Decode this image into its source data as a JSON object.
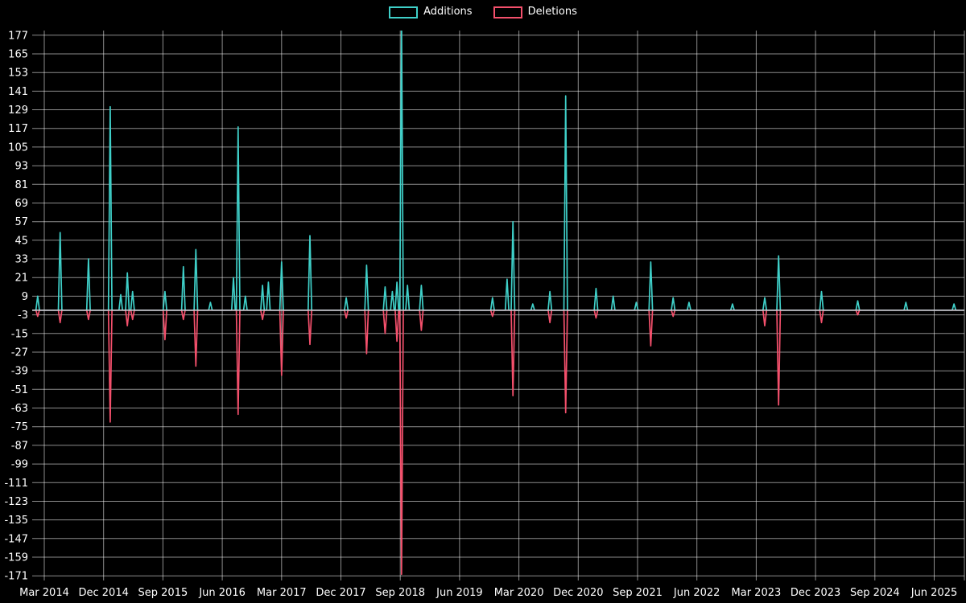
{
  "legend": {
    "items": [
      {
        "label": "Additions",
        "color": "#3fd0c9"
      },
      {
        "label": "Deletions",
        "color": "#f4506c"
      }
    ]
  },
  "colors": {
    "background": "#000000",
    "grid": "#ffffff",
    "text": "#ffffff",
    "zero_line": "#c8cdd2"
  },
  "chart_data": {
    "type": "line",
    "title": "",
    "legend_position": "top-center",
    "grid": true,
    "x_axis": {
      "tick_labels": [
        "Mar 2014",
        "Dec 2014",
        "Sep 2015",
        "Jun 2016",
        "Mar 2017",
        "Dec 2017",
        "Sep 2018",
        "Jun 2019",
        "Mar 2020",
        "Dec 2020",
        "Sep 2021",
        "Jun 2022",
        "Mar 2023",
        "Dec 2023",
        "Sep 2024",
        "Jun 2025"
      ],
      "months_between_ticks": 9
    },
    "y_axis": {
      "tick_labels": [
        "177",
        "165",
        "153",
        "141",
        "129",
        "117",
        "105",
        "93",
        "81",
        "69",
        "57",
        "45",
        "33",
        "21",
        "9",
        "-3",
        "-15",
        "-27",
        "-39",
        "-51",
        "-63",
        "-75",
        "-87",
        "-99",
        "-111",
        "-123",
        "-135",
        "-147",
        "-159",
        "-171"
      ],
      "tick_step": 12,
      "tick_max": 177,
      "tick_min": -171
    },
    "series": [
      {
        "name": "Additions",
        "color": "#3fd0c9",
        "baseline": 0,
        "spikes": [
          [
            -1,
            9
          ],
          [
            2.4,
            50
          ],
          [
            6.7,
            33
          ],
          [
            10,
            131
          ],
          [
            11.6,
            10
          ],
          [
            12.6,
            24
          ],
          [
            13.4,
            12
          ],
          [
            18.3,
            12
          ],
          [
            21.1,
            28
          ],
          [
            23,
            39
          ],
          [
            25.2,
            5
          ],
          [
            28.7,
            21
          ],
          [
            29.4,
            118
          ],
          [
            30.5,
            9
          ],
          [
            33.1,
            16
          ],
          [
            34,
            18
          ],
          [
            36,
            31
          ],
          [
            40.3,
            48
          ],
          [
            45.8,
            8
          ],
          [
            48.9,
            29
          ],
          [
            51.7,
            15
          ],
          [
            52.8,
            12
          ],
          [
            53.5,
            18
          ],
          [
            54.2,
            185
          ],
          [
            55.1,
            16
          ],
          [
            57.2,
            16
          ],
          [
            68,
            8
          ],
          [
            70.2,
            20
          ],
          [
            71.1,
            57
          ],
          [
            74.1,
            4
          ],
          [
            76.7,
            12
          ],
          [
            79.1,
            138
          ],
          [
            83.7,
            14
          ],
          [
            86.3,
            9
          ],
          [
            89.8,
            5
          ],
          [
            92,
            31
          ],
          [
            95.4,
            8
          ],
          [
            97.8,
            5
          ],
          [
            104.4,
            4
          ],
          [
            109.3,
            8
          ],
          [
            111.4,
            35
          ],
          [
            117.9,
            12
          ],
          [
            123.4,
            6
          ],
          [
            130.7,
            5
          ],
          [
            138,
            4
          ]
        ]
      },
      {
        "name": "Deletions",
        "color": "#f4506c",
        "baseline": 0,
        "spikes": [
          [
            -1,
            -4
          ],
          [
            2.4,
            -8
          ],
          [
            6.7,
            -6
          ],
          [
            10,
            -72
          ],
          [
            12.6,
            -10
          ],
          [
            13.4,
            -6
          ],
          [
            18.3,
            -19
          ],
          [
            21.1,
            -6
          ],
          [
            23,
            -36
          ],
          [
            29.4,
            -67
          ],
          [
            33.1,
            -6
          ],
          [
            36,
            -42
          ],
          [
            40.3,
            -22
          ],
          [
            45.8,
            -5
          ],
          [
            48.9,
            -28
          ],
          [
            51.7,
            -15
          ],
          [
            53.5,
            -20
          ],
          [
            54.2,
            -170
          ],
          [
            57.2,
            -13
          ],
          [
            68,
            -4
          ],
          [
            71.1,
            -55
          ],
          [
            76.7,
            -8
          ],
          [
            79.1,
            -66
          ],
          [
            83.7,
            -5
          ],
          [
            92,
            -23
          ],
          [
            95.4,
            -4
          ],
          [
            109.3,
            -10
          ],
          [
            111.4,
            -61
          ],
          [
            117.9,
            -8
          ],
          [
            123.4,
            -3
          ]
        ]
      }
    ]
  }
}
